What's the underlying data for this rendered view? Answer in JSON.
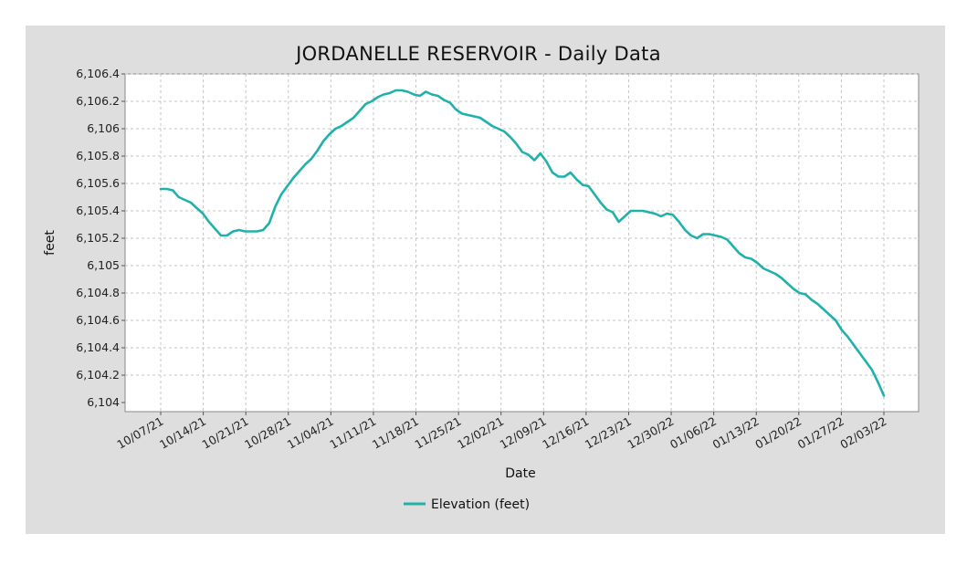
{
  "chart_data": {
    "type": "line",
    "title": "JORDANELLE RESERVOIR - Daily Data",
    "xlabel": "Date",
    "ylabel": "feet",
    "x_ticks": [
      "10/07/21",
      "10/14/21",
      "10/21/21",
      "10/28/21",
      "11/04/21",
      "11/11/21",
      "11/18/21",
      "11/25/21",
      "12/02/21",
      "12/09/21",
      "12/16/21",
      "12/23/21",
      "12/30/22",
      "01/06/22",
      "01/13/22",
      "01/20/22",
      "01/27/22",
      "02/03/22"
    ],
    "y_ticks": [
      "6,104",
      "6,104.2",
      "6,104.4",
      "6,104.6",
      "6,104.8",
      "6,105",
      "6,105.2",
      "6,105.4",
      "6,105.6",
      "6,105.8",
      "6,106",
      "6,106.2",
      "6,106.4"
    ],
    "ylim": [
      6104,
      6106.4
    ],
    "grid": true,
    "legend_position": "bottom-center",
    "series": [
      {
        "name": "Elevation (feet)",
        "color": "#20b2aa",
        "values": [
          6105.56,
          6105.56,
          6105.55,
          6105.5,
          6105.48,
          6105.46,
          6105.42,
          6105.38,
          6105.32,
          6105.27,
          6105.22,
          6105.22,
          6105.25,
          6105.26,
          6105.25,
          6105.25,
          6105.25,
          6105.26,
          6105.31,
          6105.43,
          6105.52,
          6105.58,
          6105.64,
          6105.69,
          6105.74,
          6105.78,
          6105.84,
          6105.91,
          6105.96,
          6106.0,
          6106.02,
          6106.05,
          6106.08,
          6106.13,
          6106.18,
          6106.2,
          6106.23,
          6106.25,
          6106.26,
          6106.28,
          6106.28,
          6106.27,
          6106.25,
          6106.24,
          6106.27,
          6106.25,
          6106.24,
          6106.21,
          6106.19,
          6106.14,
          6106.11,
          6106.1,
          6106.09,
          6106.08,
          6106.05,
          6106.02,
          6106.0,
          6105.98,
          6105.94,
          6105.89,
          6105.83,
          6105.81,
          6105.77,
          6105.82,
          6105.76,
          6105.68,
          6105.65,
          6105.65,
          6105.68,
          6105.63,
          6105.59,
          6105.58,
          6105.52,
          6105.46,
          6105.41,
          6105.39,
          6105.32,
          6105.36,
          6105.4,
          6105.4,
          6105.4,
          6105.39,
          6105.38,
          6105.36,
          6105.38,
          6105.37,
          6105.32,
          6105.26,
          6105.22,
          6105.2,
          6105.23,
          6105.23,
          6105.22,
          6105.21,
          6105.19,
          6105.14,
          6105.09,
          6105.06,
          6105.05,
          6105.02,
          6104.98,
          6104.96,
          6104.94,
          6104.91,
          6104.87,
          6104.83,
          6104.8,
          6104.79,
          6104.75,
          6104.72,
          6104.68,
          6104.64,
          6104.6,
          6104.53,
          6104.48,
          6104.42,
          6104.36,
          6104.3,
          6104.24,
          6104.15,
          6104.05
        ]
      }
    ]
  }
}
